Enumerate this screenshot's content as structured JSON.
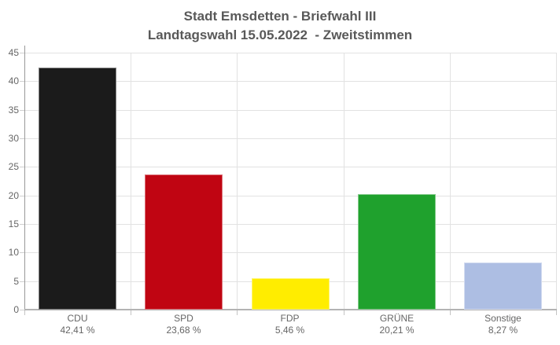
{
  "chart_data": {
    "type": "bar",
    "title": "Stadt Emsdetten - Briefwahl III",
    "subtitle": "Landtagswahl 15.05.2022  - Zweitstimmen",
    "categories": [
      "CDU",
      "SPD",
      "FDP",
      "GRÜNE",
      "Sonstige"
    ],
    "values": [
      42.41,
      23.68,
      5.46,
      20.21,
      8.27
    ],
    "value_labels": [
      "42,41 %",
      "23,68 %",
      "5,46 %",
      "20,21 %",
      "8,27 %"
    ],
    "bar_colors": [
      "#1b1b1b",
      "#c00512",
      "#ffed00",
      "#1fa12d",
      "#adbee3"
    ],
    "ylim": [
      0,
      45
    ],
    "yticks": [
      0,
      5,
      10,
      15,
      20,
      25,
      30,
      35,
      40,
      45
    ],
    "grid": true,
    "legend": "none",
    "xlabel": "",
    "ylabel": ""
  },
  "colors": {
    "background": "#ffffff",
    "title_text": "#595959",
    "axis_label_text": "#666666",
    "gridline": "#e2e2e2",
    "y_axis_line": "#999999",
    "baseline": "#b3b3b3"
  }
}
